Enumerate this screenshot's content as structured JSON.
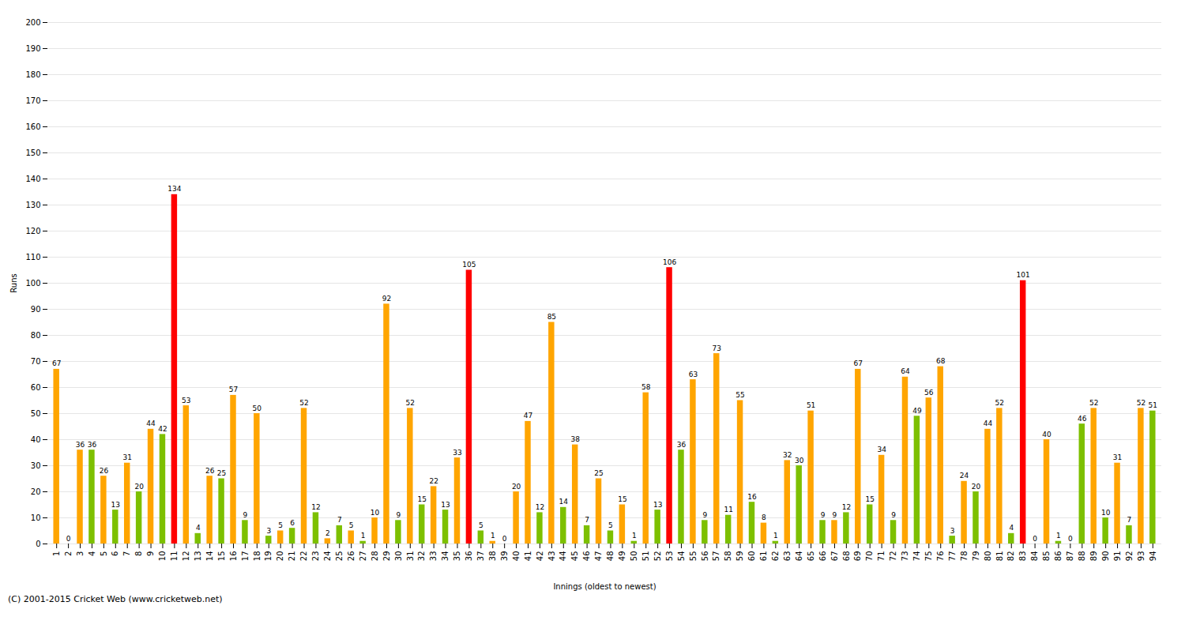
{
  "chart_data": {
    "type": "bar",
    "xlabel": "Innings (oldest to newest)",
    "ylabel": "Runs",
    "caption": "(C) 2001-2015 Cricket Web (www.cricketweb.net)",
    "categories": [
      "1",
      "2",
      "3",
      "4",
      "5",
      "6",
      "7",
      "8",
      "9",
      "10",
      "11",
      "12",
      "13",
      "14",
      "15",
      "16",
      "17",
      "18",
      "19",
      "20",
      "21",
      "22",
      "23",
      "24",
      "25",
      "26",
      "27",
      "28",
      "29",
      "30",
      "31",
      "32",
      "33",
      "34",
      "35",
      "36",
      "37",
      "38",
      "39",
      "40",
      "41",
      "42",
      "43",
      "44",
      "45",
      "46",
      "47",
      "48",
      "49",
      "50",
      "51",
      "52",
      "53",
      "54",
      "55",
      "56",
      "57",
      "58",
      "59",
      "60",
      "61",
      "62",
      "63",
      "64",
      "65",
      "66",
      "67",
      "68",
      "69",
      "70",
      "71",
      "72",
      "73",
      "74",
      "75",
      "76",
      "77",
      "78",
      "79",
      "80",
      "81",
      "82",
      "83",
      "84",
      "85",
      "86",
      "87",
      "88",
      "89",
      "90",
      "91",
      "92",
      "93",
      "94"
    ],
    "values": [
      67,
      0,
      36,
      36,
      26,
      13,
      31,
      20,
      44,
      42,
      134,
      53,
      4,
      26,
      25,
      57,
      9,
      50,
      3,
      5,
      6,
      52,
      12,
      2,
      7,
      5,
      1,
      10,
      92,
      9,
      52,
      15,
      22,
      13,
      33,
      105,
      5,
      1,
      0,
      20,
      47,
      12,
      85,
      14,
      38,
      7,
      25,
      5,
      15,
      1,
      58,
      13,
      106,
      36,
      63,
      9,
      73,
      11,
      55,
      16,
      8,
      1,
      32,
      30,
      51,
      9,
      9,
      12,
      67,
      15,
      34,
      9,
      64,
      49,
      56,
      68,
      3,
      24,
      20,
      44,
      52,
      4,
      101,
      0,
      40,
      1,
      0,
      46,
      52,
      10,
      31,
      7,
      52,
      51
    ],
    "colors": [
      "#FFA500",
      "#7DC000",
      "#FFA500",
      "#7DC000",
      "#FFA500",
      "#7DC000",
      "#FFA500",
      "#7DC000",
      "#FFA500",
      "#7DC000",
      "#FF0000",
      "#FFA500",
      "#7DC000",
      "#FFA500",
      "#7DC000",
      "#FFA500",
      "#7DC000",
      "#FFA500",
      "#7DC000",
      "#FFA500",
      "#7DC000",
      "#FFA500",
      "#7DC000",
      "#FFA500",
      "#7DC000",
      "#FFA500",
      "#7DC000",
      "#FFA500",
      "#FFA500",
      "#7DC000",
      "#FFA500",
      "#7DC000",
      "#FFA500",
      "#7DC000",
      "#FFA500",
      "#FF0000",
      "#7DC000",
      "#FFA500",
      "#7DC000",
      "#FFA500",
      "#FFA500",
      "#7DC000",
      "#FFA500",
      "#7DC000",
      "#FFA500",
      "#7DC000",
      "#FFA500",
      "#7DC000",
      "#FFA500",
      "#7DC000",
      "#FFA500",
      "#7DC000",
      "#FF0000",
      "#7DC000",
      "#FFA500",
      "#7DC000",
      "#FFA500",
      "#7DC000",
      "#FFA500",
      "#7DC000",
      "#FFA500",
      "#7DC000",
      "#FFA500",
      "#7DC000",
      "#FFA500",
      "#7DC000",
      "#FFA500",
      "#7DC000",
      "#FFA500",
      "#7DC000",
      "#FFA500",
      "#7DC000",
      "#FFA500",
      "#7DC000",
      "#FFA500",
      "#FFA500",
      "#7DC000",
      "#FFA500",
      "#7DC000",
      "#FFA500",
      "#FFA500",
      "#7DC000",
      "#FF0000",
      "#7DC000",
      "#FFA500",
      "#7DC000",
      "#FFA500",
      "#7DC000",
      "#FFA500",
      "#7DC000",
      "#FFA500",
      "#7DC000",
      "#FFA500",
      "#7DC000"
    ],
    "ylim": [
      0,
      200
    ],
    "yticks": [
      0,
      10,
      20,
      30,
      40,
      50,
      60,
      70,
      80,
      90,
      100,
      110,
      120,
      130,
      140,
      150,
      160,
      170,
      180,
      190,
      200
    ],
    "grid": true,
    "data_labels": true
  }
}
